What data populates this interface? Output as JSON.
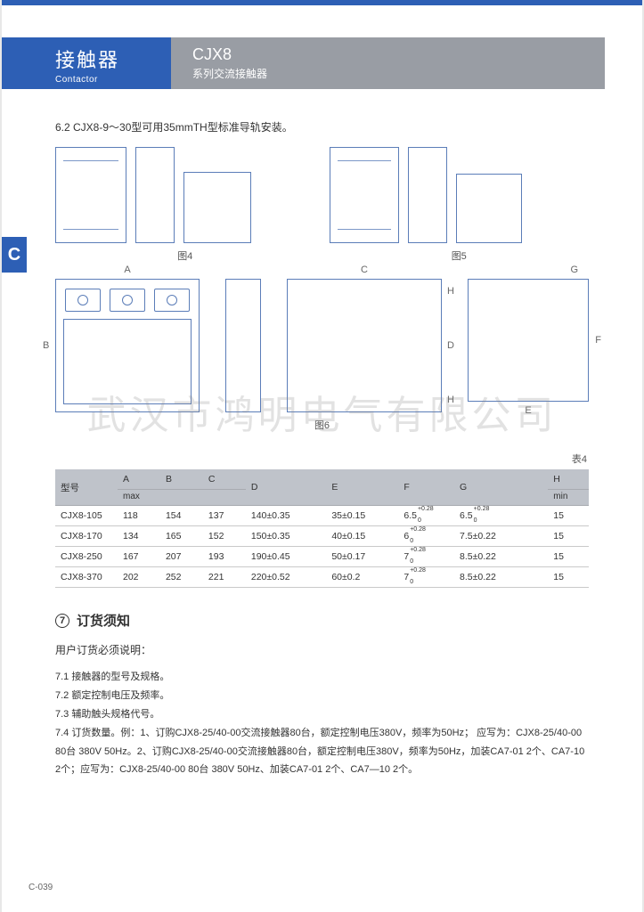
{
  "header": {
    "title_cn": "接触器",
    "title_en": "Contactor",
    "model": "CJX8",
    "model_desc": "系列交流接触器"
  },
  "side_tab": "C",
  "section_6_2": "6.2 CJX8-9～30型可用35mmTH型标准导轨安装。",
  "captions": {
    "fig4": "图4",
    "fig5": "图5",
    "fig6": "图6",
    "table4": "表4"
  },
  "dim_letters": {
    "A": "A",
    "B": "B",
    "C": "C",
    "D": "D",
    "E": "E",
    "F": "F",
    "G": "G",
    "H": "H"
  },
  "table": {
    "header_model": "型号",
    "header_sub_max": "max",
    "header_sub_min": "min",
    "cols": [
      "A",
      "B",
      "C",
      "D",
      "E",
      "F",
      "G",
      "H"
    ],
    "rows": [
      {
        "model": "CJX8-105",
        "A": "118",
        "B": "154",
        "C": "137",
        "D": "140±0.35",
        "E": "35±0.15",
        "F_base": "6.5",
        "F_sup": "+0.28",
        "F_sub": "0",
        "G_base": "6.5",
        "G_sup": "+0.28",
        "G_sub": "0",
        "H": "15"
      },
      {
        "model": "CJX8-170",
        "A": "134",
        "B": "165",
        "C": "152",
        "D": "150±0.35",
        "E": "40±0.15",
        "F_base": "6",
        "F_sup": "+0.28",
        "F_sub": "0",
        "G_base": "7.5±0.22",
        "G_sup": "",
        "G_sub": "",
        "H": "15"
      },
      {
        "model": "CJX8-250",
        "A": "167",
        "B": "207",
        "C": "193",
        "D": "190±0.45",
        "E": "50±0.17",
        "F_base": "7",
        "F_sup": "+0.28",
        "F_sub": "0",
        "G_base": "8.5±0.22",
        "G_sup": "",
        "G_sub": "",
        "H": "15"
      },
      {
        "model": "CJX8-370",
        "A": "202",
        "B": "252",
        "C": "221",
        "D": "220±0.52",
        "E": "60±0.2",
        "F_base": "7",
        "F_sup": "+0.28",
        "F_sub": "0",
        "G_base": "8.5±0.22",
        "G_sup": "",
        "G_sub": "",
        "H": "15"
      }
    ]
  },
  "order": {
    "bullet": "7",
    "heading": "订货须知",
    "intro": "用户订货必须说明：",
    "items": [
      "7.1 接触器的型号及规格。",
      "7.2 额定控制电压及频率。",
      "7.3 辅助触头规格代号。",
      "7.4 订货数量。例：1、订购CJX8-25/40-00交流接触器80台，额定控制电压380V，频率为50Hz； 应写为：CJX8-25/40-00 80台  380V 50Hz。2、订购CJX8-25/40-00交流接触器80台，额定控制电压380V，频率为50Hz，加装CA7-01 2个、CA7-10 2个；应写为：CJX8-25/40-00 80台  380V  50Hz、加装CA7-01 2个、CA7—10 2个。"
    ]
  },
  "watermark": "武汉市鸿明电气有限公司",
  "footer": "C-039"
}
